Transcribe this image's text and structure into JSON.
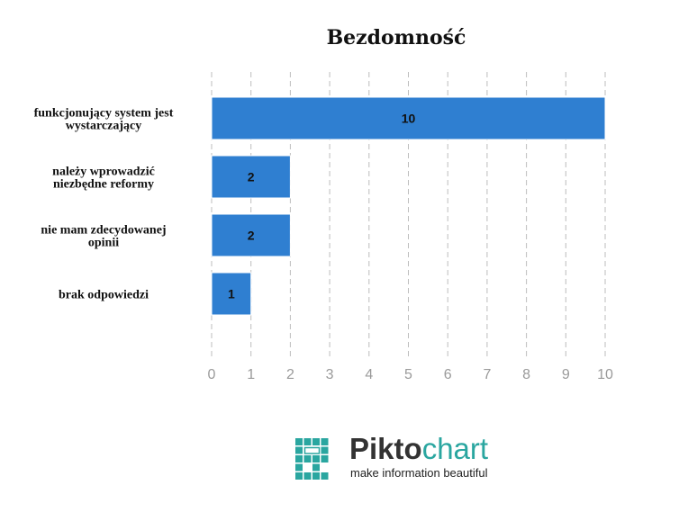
{
  "chart_data": {
    "type": "bar",
    "orientation": "horizontal",
    "title": "Bezdomność",
    "categories": [
      [
        "funkcjonujący system jest",
        "wystarczający"
      ],
      [
        "należy wprowadzić",
        "niezbędne reformy"
      ],
      [
        "nie mam zdecydowanej",
        "opinii"
      ],
      [
        "brak odpowiedzi"
      ]
    ],
    "values": [
      10,
      2,
      2,
      1
    ],
    "xlim": [
      0,
      10
    ],
    "xticks": [
      "0",
      "1",
      "2",
      "3",
      "4",
      "5",
      "6",
      "7",
      "8",
      "9",
      "10"
    ],
    "grid": true,
    "bar_color": "#2f7fd1"
  },
  "branding": {
    "word_left": "Pikto",
    "word_right": "chart",
    "tagline": "make information beautiful",
    "icon": "piktochart-logo-icon",
    "accent_color": "#2aa6a0",
    "text_color": "#333333"
  }
}
